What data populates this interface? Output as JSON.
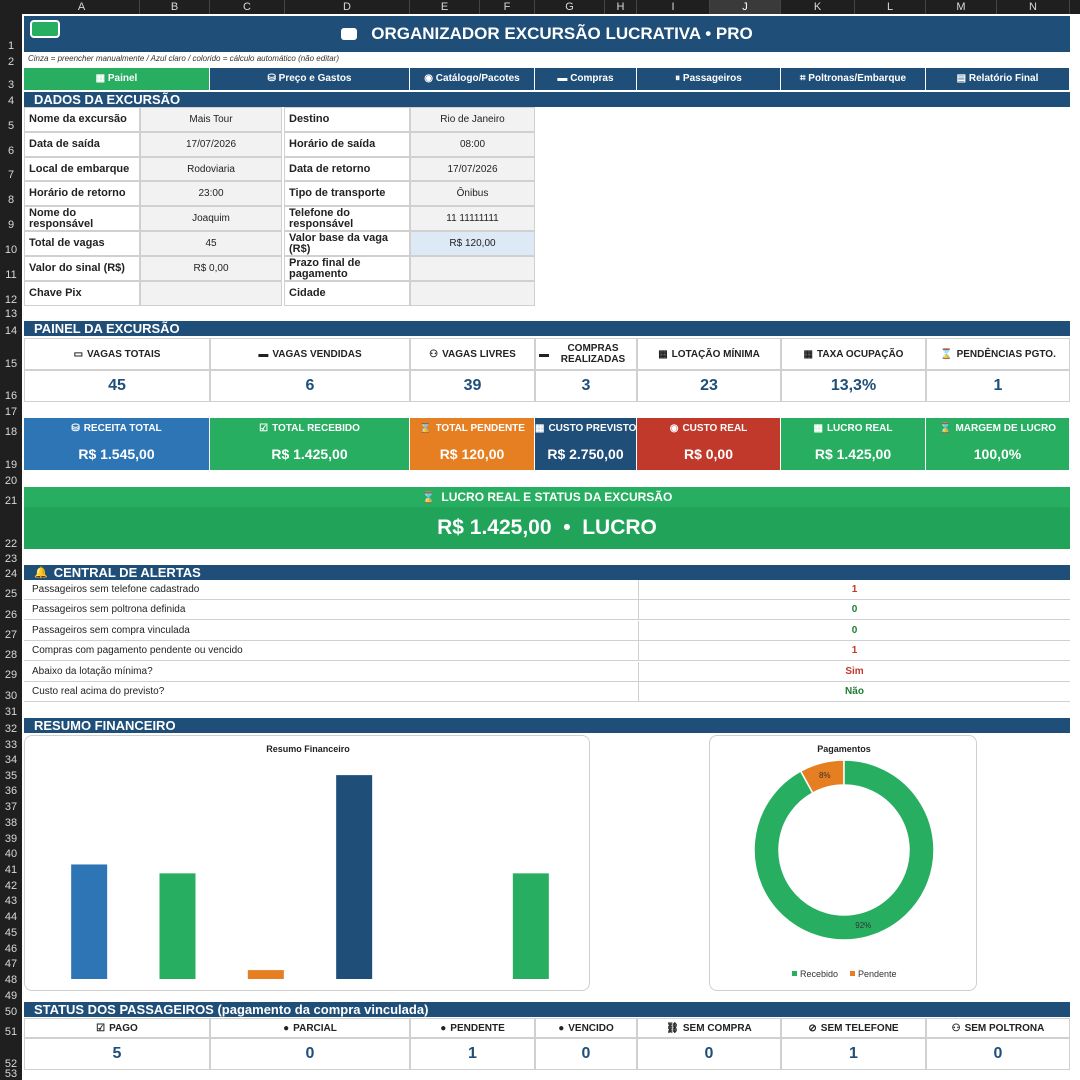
{
  "columns": [
    "A",
    "B",
    "C",
    "D",
    "E",
    "F",
    "G",
    "H",
    "I",
    "J",
    "K",
    "L",
    "M",
    "N"
  ],
  "rows": [
    "1",
    "2",
    "3",
    "4",
    "5",
    "6",
    "7",
    "8",
    "9",
    "10",
    "11",
    "12",
    "13",
    "14",
    "15",
    "16",
    "17",
    "18",
    "19",
    "20",
    "21",
    "22",
    "23",
    "24",
    "25",
    "26",
    "27",
    "28",
    "29",
    "30",
    "31",
    "32",
    "33",
    "34",
    "35",
    "36",
    "37",
    "38",
    "39",
    "40",
    "41",
    "42",
    "43",
    "44",
    "45",
    "46",
    "47",
    "48",
    "49",
    "50",
    "51",
    "52",
    "53"
  ],
  "header": {
    "title": "ORGANIZADOR EXCURSÃO LUCRATIVA  •  PRO"
  },
  "legend_note": "Cinza = preencher manualmente  /  Azul claro / colorido = cálculo automático (não editar)",
  "tabs": [
    {
      "label": "Painel",
      "icon": "chart-icon"
    },
    {
      "label": "Preço e Gastos",
      "icon": "money-bag-icon"
    },
    {
      "label": "Catálogo/Pacotes",
      "icon": "catalog-icon"
    },
    {
      "label": "Compras",
      "icon": "cart-icon"
    },
    {
      "label": "Passageiros",
      "icon": "people-icon"
    },
    {
      "label": "Poltronas/Embarque",
      "icon": "seat-icon"
    },
    {
      "label": "Relatório Final",
      "icon": "report-icon"
    }
  ],
  "dados": {
    "title": "DADOS DA EXCURSÃO",
    "left": [
      {
        "label": "Nome da excursão",
        "value": "Mais Tour"
      },
      {
        "label": "Data de saída",
        "value": "17/07/2026"
      },
      {
        "label": "Local de embarque",
        "value": "Rodoviaria"
      },
      {
        "label": "Horário de retorno",
        "value": "23:00"
      },
      {
        "label": "Nome do responsável",
        "value": "Joaquim"
      },
      {
        "label": "Total de vagas",
        "value": "45"
      },
      {
        "label": "Valor do sinal (R$)",
        "value": "R$ 0,00"
      },
      {
        "label": "Chave Pix",
        "value": ""
      }
    ],
    "right": [
      {
        "label": "Destino",
        "value": "Rio de Janeiro"
      },
      {
        "label": "Horário de saída",
        "value": "08:00"
      },
      {
        "label": "Data de retorno",
        "value": "17/07/2026"
      },
      {
        "label": "Tipo de transporte",
        "value": "Ônibus"
      },
      {
        "label": "Telefone do responsável",
        "value": "11 11111111"
      },
      {
        "label": "Valor base da vaga (R$)",
        "value": "R$ 120,00"
      },
      {
        "label": "Prazo final de pagamento",
        "value": ""
      },
      {
        "label": "Cidade",
        "value": ""
      }
    ]
  },
  "painel": {
    "title": "PAINEL DA EXCURSÃO",
    "kpis": [
      {
        "label": "VAGAS TOTAIS",
        "value": "45"
      },
      {
        "label": "VAGAS VENDIDAS",
        "value": "6"
      },
      {
        "label": "VAGAS LIVRES",
        "value": "39"
      },
      {
        "label": "COMPRAS REALIZADAS",
        "value": "3"
      },
      {
        "label": "LOTAÇÃO MÍNIMA",
        "value": "23"
      },
      {
        "label": "TAXA OCUPAÇÃO",
        "value": "13,3%"
      },
      {
        "label": "PENDÊNCIAS PGTO.",
        "value": "1"
      }
    ],
    "fin": [
      {
        "label": "RECEITA TOTAL",
        "value": "R$ 1.545,00",
        "color": "#2e75b6"
      },
      {
        "label": "TOTAL RECEBIDO",
        "value": "R$ 1.425,00",
        "color": "#27ae60"
      },
      {
        "label": "TOTAL PENDENTE",
        "value": "R$ 120,00",
        "color": "#e67e22"
      },
      {
        "label": "CUSTO PREVISTO",
        "value": "R$ 2.750,00",
        "color": "#1f4e79"
      },
      {
        "label": "CUSTO REAL",
        "value": "R$ 0,00",
        "color": "#c0392b"
      },
      {
        "label": "LUCRO REAL",
        "value": "R$ 1.425,00",
        "color": "#27ae60"
      },
      {
        "label": "MARGEM DE LUCRO",
        "value": "100,0%",
        "color": "#27ae60"
      }
    ]
  },
  "lucro": {
    "title": "LUCRO REAL E STATUS DA EXCURSÃO",
    "value": "R$ 1.425,00  •  LUCRO"
  },
  "alertas": {
    "title": "CENTRAL DE ALERTAS",
    "items": [
      {
        "label": "Passageiros sem telefone cadastrado",
        "value": "1",
        "color": "#c0392b"
      },
      {
        "label": "Passageiros sem poltrona definida",
        "value": "0",
        "color": "#1e7d32"
      },
      {
        "label": "Passageiros sem compra vinculada",
        "value": "0",
        "color": "#1e7d32"
      },
      {
        "label": "Compras com pagamento pendente ou vencido",
        "value": "1",
        "color": "#c0392b"
      },
      {
        "label": "Abaixo da lotação mínima?",
        "value": "Sim",
        "color": "#c0392b"
      },
      {
        "label": "Custo real acima do previsto?",
        "value": "Não",
        "color": "#1e7d32"
      }
    ]
  },
  "resumo": {
    "title": "RESUMO FINANCEIRO"
  },
  "chart_data": [
    {
      "type": "bar",
      "title": "Resumo Financeiro",
      "categories": [
        "",
        "",
        "",
        "",
        "",
        ""
      ],
      "values": [
        1545,
        1425,
        120,
        2750,
        0,
        1425
      ],
      "colors": [
        "#2e75b6",
        "#27ae60",
        "#e67e22",
        "#1f4e79",
        "#c0392b",
        "#27ae60"
      ],
      "ylim": [
        0,
        2900
      ]
    },
    {
      "type": "pie",
      "title": "Pagamentos",
      "labels": [
        "Recebido",
        "Pendente"
      ],
      "values": [
        92,
        8
      ],
      "value_labels": [
        "92%",
        "8%"
      ],
      "colors": [
        "#27ae60",
        "#e67e22"
      ],
      "legend": "bottom"
    }
  ],
  "status": {
    "title": "STATUS DOS PASSAGEIROS (pagamento da compra vinculada)",
    "items": [
      {
        "label": "PAGO",
        "value": "5"
      },
      {
        "label": "PARCIAL",
        "value": "0"
      },
      {
        "label": "PENDENTE",
        "value": "1"
      },
      {
        "label": "VENCIDO",
        "value": "0"
      },
      {
        "label": "SEM COMPRA",
        "value": "0"
      },
      {
        "label": "SEM TELEFONE",
        "value": "1"
      },
      {
        "label": "SEM POLTRONA",
        "value": "0"
      }
    ]
  }
}
